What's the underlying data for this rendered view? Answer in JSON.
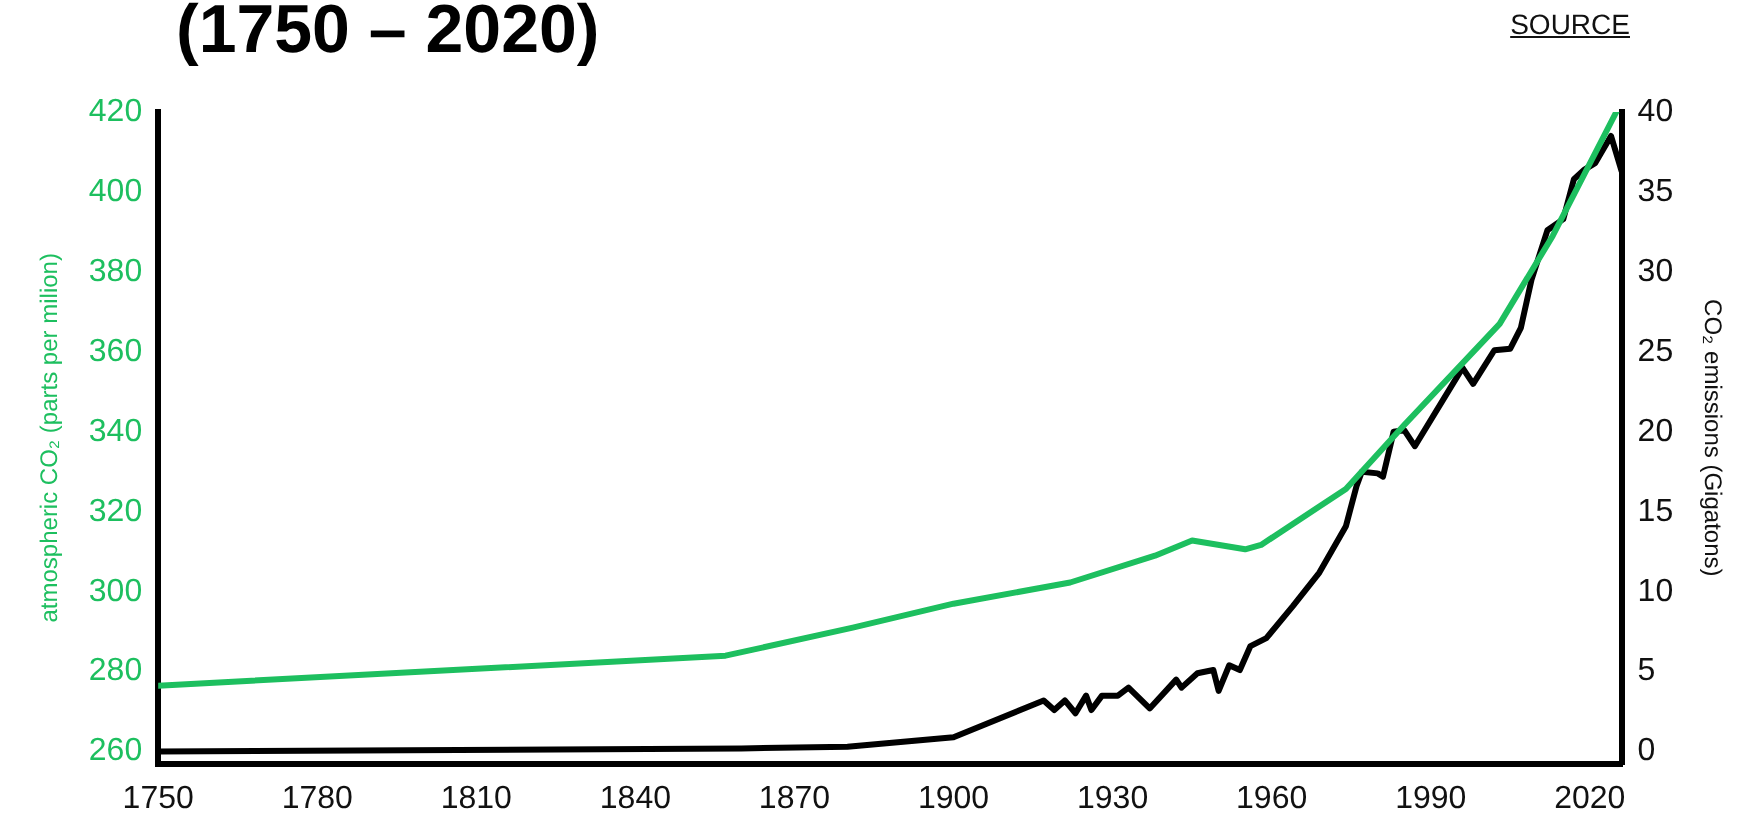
{
  "chart_data": {
    "type": "line",
    "title": "(1750 – 2020)",
    "annotations": [
      "SOURCE"
    ],
    "ylabel": "atmospheric CO₂ (parts per milion)",
    "y2label": "CO₂ emissions (Gigatons)",
    "xlim": [
      1750,
      2026
    ],
    "xticks": [
      1750,
      1780,
      1810,
      1840,
      1870,
      1900,
      1930,
      1960,
      1990,
      2020
    ],
    "ylim": [
      257,
      420
    ],
    "yticks": [
      260,
      280,
      300,
      320,
      340,
      360,
      380,
      400,
      420
    ],
    "y2lim": [
      -0.75,
      40
    ],
    "y2ticks": [
      0,
      5,
      10,
      15,
      20,
      25,
      30,
      35,
      40
    ],
    "grid": false,
    "legend": false,
    "marker": "none",
    "line_style": "solid",
    "series": [
      {
        "color": "#1dbf5f",
        "x": [
          1750,
          1857,
          1881,
          1900,
          1922,
          1938,
          1945,
          1955,
          1958,
          1974,
          1985,
          2003,
          2013,
          2025
        ],
        "values": [
          276.5,
          284,
          291,
          297,
          302.3,
          309,
          312.8,
          310.6,
          311.7,
          325.7,
          341.7,
          367,
          389,
          420
        ]
      },
      {
        "color": "#000000",
        "axis": "y2",
        "x": [
          1750,
          1860,
          1880,
          1900,
          1917,
          1919,
          1921,
          1923,
          1925,
          1926,
          1928,
          1931,
          1933,
          1937,
          1942,
          1943,
          1946,
          1949,
          1950,
          1952,
          1954,
          1956,
          1959,
          1964,
          1969,
          1974,
          1976,
          1977,
          1980,
          1981,
          1983,
          1985,
          1987,
          1996,
          1998,
          2002,
          2005,
          2007,
          2009,
          2012,
          2015,
          2017,
          2019,
          2021,
          2024,
          2026
        ],
        "values": [
          0,
          0.2,
          0.3,
          0.9,
          3.2,
          2.6,
          3.2,
          2.4,
          3.5,
          2.6,
          3.5,
          3.5,
          4.0,
          2.7,
          4.5,
          4.0,
          4.9,
          5.1,
          3.8,
          5.4,
          5.1,
          6.6,
          7.1,
          9.1,
          11.2,
          14.1,
          16.6,
          17.5,
          17.4,
          17.2,
          20,
          20.1,
          19.1,
          24,
          23,
          25.1,
          25.2,
          26.5,
          29.5,
          32.6,
          33.3,
          35.8,
          36.4,
          36.8,
          38.5,
          36.3
        ]
      }
    ]
  }
}
